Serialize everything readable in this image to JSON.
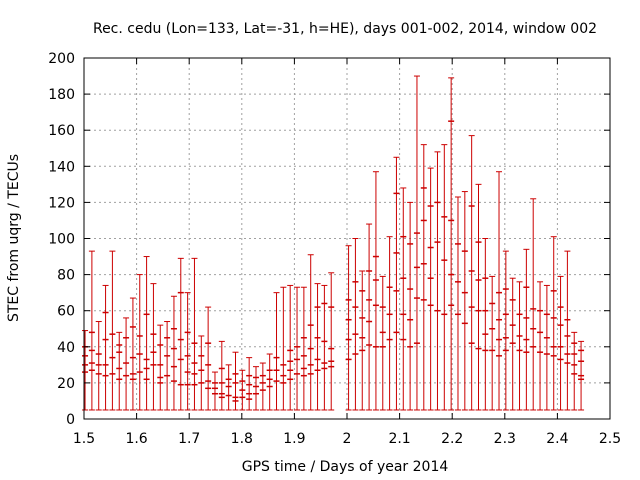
{
  "chart_data": {
    "type": "scatter",
    "title": "Rec. cedu (Lon=133, Lat=-31, h=HE), days 001-002, 2014, window 002",
    "xlabel": "GPS time / Days of year 2014",
    "ylabel": "STEC from uqrg / TECUs",
    "xlim": [
      1.5,
      2.5
    ],
    "ylim": [
      0,
      200
    ],
    "xticks": [
      1.5,
      1.6,
      1.7,
      1.8,
      1.9,
      2.0,
      2.1,
      2.2,
      2.3,
      2.4,
      2.5
    ],
    "xtick_labels": [
      "1.5",
      "1.6",
      "1.7",
      "1.8",
      "1.9",
      "2",
      "2.1",
      "2.2",
      "2.3",
      "2.4",
      "2.5"
    ],
    "yticks": [
      0,
      20,
      40,
      60,
      80,
      100,
      120,
      140,
      160,
      180,
      200
    ],
    "ytick_labels": [
      "0",
      "20",
      "40",
      "60",
      "80",
      "100",
      "120",
      "140",
      "160",
      "180",
      "200"
    ],
    "grid": true,
    "color": "#cc0000",
    "series": [
      {
        "style": "error bars (lower/upper whiskers with horizontal caps; middle caps are STEC values of different satellites)",
        "points": [
          {
            "x": 1.502,
            "low": 5,
            "high": 49,
            "mid": [
              40,
              35,
              30,
              26
            ]
          },
          {
            "x": 1.515,
            "low": 5,
            "high": 93,
            "mid": [
              48,
              38,
              31,
              27
            ]
          },
          {
            "x": 1.528,
            "low": 5,
            "high": 54,
            "mid": [
              36,
              30,
              25
            ]
          },
          {
            "x": 1.541,
            "low": 5,
            "high": 74,
            "mid": [
              59,
              44,
              30,
              24
            ]
          },
          {
            "x": 1.554,
            "low": 5,
            "high": 93,
            "mid": [
              47,
              34,
              25
            ]
          },
          {
            "x": 1.567,
            "low": 5,
            "high": 48,
            "mid": [
              41,
              37,
              28,
              22
            ]
          },
          {
            "x": 1.58,
            "low": 5,
            "high": 56,
            "mid": [
              45,
              31,
              24
            ]
          },
          {
            "x": 1.593,
            "low": 5,
            "high": 67,
            "mid": [
              51,
              34,
              25,
              22
            ]
          },
          {
            "x": 1.606,
            "low": 5,
            "high": 80,
            "mid": [
              46,
              36,
              26
            ]
          },
          {
            "x": 1.619,
            "low": 5,
            "high": 90,
            "mid": [
              58,
              33,
              28,
              22
            ]
          },
          {
            "x": 1.632,
            "low": 5,
            "high": 75,
            "mid": [
              47,
              37,
              30
            ]
          },
          {
            "x": 1.645,
            "low": 5,
            "high": 52,
            "mid": [
              41,
              30,
              23,
              20
            ]
          },
          {
            "x": 1.658,
            "low": 5,
            "high": 54,
            "mid": [
              45,
              35,
              24
            ]
          },
          {
            "x": 1.671,
            "low": 5,
            "high": 68,
            "mid": [
              50,
              39,
              29,
              21
            ]
          },
          {
            "x": 1.684,
            "low": 5,
            "high": 89,
            "mid": [
              70,
              44,
              33,
              19
            ]
          },
          {
            "x": 1.697,
            "low": 5,
            "high": 70,
            "mid": [
              48,
              35,
              26,
              19
            ]
          },
          {
            "x": 1.71,
            "low": 5,
            "high": 89,
            "mid": [
              42,
              31,
              25,
              19
            ]
          },
          {
            "x": 1.723,
            "low": 5,
            "high": 46,
            "mid": [
              35,
              27,
              20
            ]
          },
          {
            "x": 1.736,
            "low": 5,
            "high": 62,
            "mid": [
              42,
              30,
              21,
              17
            ]
          },
          {
            "x": 1.749,
            "low": 5,
            "high": 26,
            "mid": [
              20,
              17,
              14
            ]
          },
          {
            "x": 1.762,
            "low": 5,
            "high": 43,
            "mid": [
              28,
              20,
              14,
              12
            ]
          },
          {
            "x": 1.775,
            "low": 5,
            "high": 30,
            "mid": [
              22,
              18,
              13
            ]
          },
          {
            "x": 1.788,
            "low": 5,
            "high": 37,
            "mid": [
              25,
              20,
              12,
              10
            ]
          },
          {
            "x": 1.801,
            "low": 5,
            "high": 27,
            "mid": [
              21,
              16,
              12
            ]
          },
          {
            "x": 1.814,
            "low": 5,
            "high": 34,
            "mid": [
              24,
              19,
              14,
              11
            ]
          },
          {
            "x": 1.827,
            "low": 5,
            "high": 29,
            "mid": [
              23,
              18,
              14
            ]
          },
          {
            "x": 1.84,
            "low": 5,
            "high": 31,
            "mid": [
              24,
              20,
              16
            ]
          },
          {
            "x": 1.853,
            "low": 5,
            "high": 36,
            "mid": [
              27,
              22,
              18
            ]
          },
          {
            "x": 1.866,
            "low": 5,
            "high": 70,
            "mid": [
              34,
              27,
              21
            ]
          },
          {
            "x": 1.879,
            "low": 5,
            "high": 73,
            "mid": [
              30,
              24,
              20
            ]
          },
          {
            "x": 1.892,
            "low": 5,
            "high": 74,
            "mid": [
              38,
              32,
              27,
              22
            ]
          },
          {
            "x": 1.905,
            "low": 5,
            "high": 73,
            "mid": [
              40,
              33,
              25
            ]
          },
          {
            "x": 1.918,
            "low": 5,
            "high": 73,
            "mid": [
              45,
              35,
              28,
              24
            ]
          },
          {
            "x": 1.931,
            "low": 5,
            "high": 91,
            "mid": [
              52,
              39,
              30,
              25
            ]
          },
          {
            "x": 1.944,
            "low": 5,
            "high": 75,
            "mid": [
              62,
              45,
              33,
              27
            ]
          },
          {
            "x": 1.957,
            "low": 5,
            "high": 74,
            "mid": [
              64,
              43,
              31,
              28
            ]
          },
          {
            "x": 1.97,
            "low": 5,
            "high": 81,
            "mid": [
              62,
              39,
              32,
              29
            ]
          },
          {
            "x": 2.003,
            "low": 5,
            "high": 96,
            "mid": [
              66,
              55,
              44,
              33
            ]
          },
          {
            "x": 2.016,
            "low": 5,
            "high": 100,
            "mid": [
              76,
              62,
              47,
              36
            ]
          },
          {
            "x": 2.029,
            "low": 5,
            "high": 82,
            "mid": [
              71,
              56,
              45,
              38
            ]
          },
          {
            "x": 2.042,
            "low": 5,
            "high": 108,
            "mid": [
              82,
              66,
              54,
              41
            ]
          },
          {
            "x": 2.055,
            "low": 5,
            "high": 137,
            "mid": [
              90,
              77,
              63,
              40
            ]
          },
          {
            "x": 2.068,
            "low": 5,
            "high": 79,
            "mid": [
              62,
              48,
              40
            ]
          },
          {
            "x": 2.081,
            "low": 5,
            "high": 101,
            "mid": [
              73,
              58,
              44
            ]
          },
          {
            "x": 2.094,
            "low": 5,
            "high": 145,
            "mid": [
              125,
              92,
              71,
              48
            ]
          },
          {
            "x": 2.107,
            "low": 5,
            "high": 128,
            "mid": [
              101,
              78,
              58,
              44
            ]
          },
          {
            "x": 2.12,
            "low": 5,
            "high": 120,
            "mid": [
              97,
              72,
              55,
              40
            ]
          },
          {
            "x": 2.133,
            "low": 5,
            "high": 190,
            "mid": [
              103,
              84,
              67,
              42
            ]
          },
          {
            "x": 2.146,
            "low": 5,
            "high": 152,
            "mid": [
              128,
              110,
              86,
              66
            ]
          },
          {
            "x": 2.159,
            "low": 5,
            "high": 139,
            "mid": [
              118,
              95,
              78,
              63
            ]
          },
          {
            "x": 2.172,
            "low": 5,
            "high": 148,
            "mid": [
              120,
              98,
              60
            ]
          },
          {
            "x": 2.185,
            "low": 5,
            "high": 152,
            "mid": [
              112,
              88,
              58
            ]
          },
          {
            "x": 2.198,
            "low": 5,
            "high": 189,
            "mid": [
              165,
              110,
              80,
              63
            ]
          },
          {
            "x": 2.211,
            "low": 5,
            "high": 123,
            "mid": [
              97,
              76,
              58
            ]
          },
          {
            "x": 2.224,
            "low": 5,
            "high": 126,
            "mid": [
              93,
              70,
              53
            ]
          },
          {
            "x": 2.237,
            "low": 5,
            "high": 157,
            "mid": [
              118,
              82,
              62,
              42
            ]
          },
          {
            "x": 2.25,
            "low": 5,
            "high": 130,
            "mid": [
              98,
              77,
              60,
              39
            ]
          },
          {
            "x": 2.263,
            "low": 5,
            "high": 100,
            "mid": [
              78,
              60,
              47,
              38
            ]
          },
          {
            "x": 2.276,
            "low": 5,
            "high": 79,
            "mid": [
              64,
              50,
              38
            ]
          },
          {
            "x": 2.289,
            "low": 5,
            "high": 137,
            "mid": [
              70,
              55,
              44,
              35
            ]
          },
          {
            "x": 2.302,
            "low": 5,
            "high": 93,
            "mid": [
              72,
              58,
              45,
              38
            ]
          },
          {
            "x": 2.315,
            "low": 5,
            "high": 78,
            "mid": [
              66,
              52,
              42
            ]
          },
          {
            "x": 2.328,
            "low": 5,
            "high": 76,
            "mid": [
              58,
              46,
              38
            ]
          },
          {
            "x": 2.341,
            "low": 5,
            "high": 94,
            "mid": [
              73,
              56,
              44,
              37
            ]
          },
          {
            "x": 2.354,
            "low": 5,
            "high": 122,
            "mid": [
              61,
              50,
              40
            ]
          },
          {
            "x": 2.367,
            "low": 5,
            "high": 76,
            "mid": [
              60,
              48,
              37
            ]
          },
          {
            "x": 2.38,
            "low": 5,
            "high": 74,
            "mid": [
              58,
              45,
              36
            ]
          },
          {
            "x": 2.393,
            "low": 5,
            "high": 101,
            "mid": [
              71,
              56,
              40,
              35
            ]
          },
          {
            "x": 2.406,
            "low": 5,
            "high": 79,
            "mid": [
              62,
              52,
              40,
              33
            ]
          },
          {
            "x": 2.419,
            "low": 5,
            "high": 93,
            "mid": [
              55,
              46,
              36,
              31
            ]
          },
          {
            "x": 2.432,
            "low": 5,
            "high": 48,
            "mid": [
              42,
              36,
              30,
              25
            ]
          },
          {
            "x": 2.445,
            "low": 5,
            "high": 43,
            "mid": [
              38,
              32,
              24,
              22
            ]
          }
        ]
      }
    ]
  }
}
